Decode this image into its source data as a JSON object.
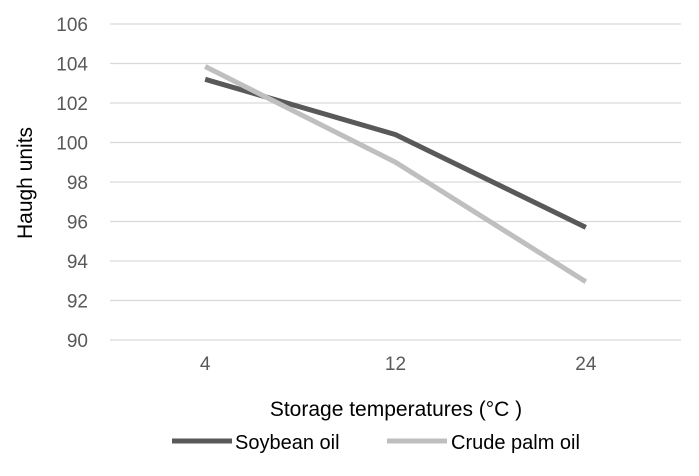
{
  "chart_data": {
    "type": "line",
    "title": "",
    "xlabel": "Storage temperatures (°C )",
    "ylabel": "Haugh units",
    "categories": [
      "4",
      "12",
      "24"
    ],
    "ylim": [
      90,
      106
    ],
    "yticks": [
      "90",
      "92",
      "94",
      "96",
      "98",
      "100",
      "102",
      "104",
      "106"
    ],
    "grid": true,
    "legend_position": "bottom",
    "series": [
      {
        "name": "Soybean oil",
        "values": [
          103.2,
          100.4,
          95.7
        ],
        "color": "#595959"
      },
      {
        "name": "Crude palm oil",
        "values": [
          103.85,
          99.0,
          92.95
        ],
        "color": "#bfbfbf"
      }
    ]
  }
}
